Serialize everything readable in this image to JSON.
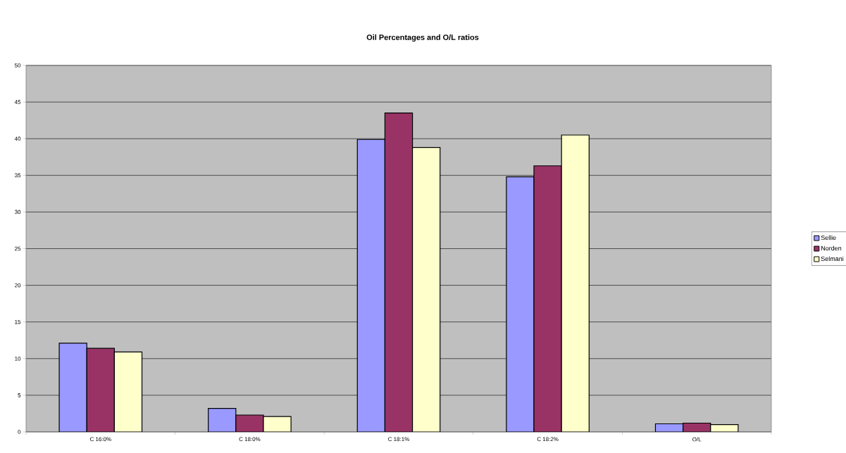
{
  "chart_data": {
    "type": "bar",
    "title": "Oil Percentages and O/L ratios",
    "categories": [
      "C 16:0%",
      "C 18:0%",
      "C 18:1%",
      "C 18:2%",
      "O/L"
    ],
    "series": [
      {
        "name": "Sellie",
        "color": "#9999ff",
        "values": [
          12.1,
          3.2,
          39.9,
          34.8,
          1.1
        ]
      },
      {
        "name": "Norden",
        "color": "#993366",
        "values": [
          11.4,
          2.3,
          43.5,
          36.3,
          1.2
        ]
      },
      {
        "name": "Selmani",
        "color": "#ffffcc",
        "values": [
          10.9,
          2.1,
          38.8,
          40.5,
          1.0
        ]
      }
    ],
    "ylim": [
      0,
      50
    ],
    "yticks": [
      0,
      5,
      10,
      15,
      20,
      25,
      30,
      35,
      40,
      45,
      50
    ],
    "grid": "y",
    "legend": "right"
  }
}
